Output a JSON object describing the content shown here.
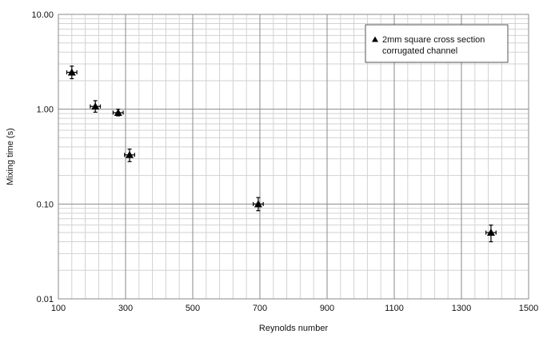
{
  "chart_data": {
    "type": "scatter",
    "title": "",
    "xlabel": "Reynolds number",
    "ylabel": "Mixing time (s)",
    "xlim": [
      100,
      1500
    ],
    "ylim": [
      0.01,
      10
    ],
    "y_scale": "log",
    "grid": true,
    "legend_position": "top-right",
    "x_ticks": [
      100,
      300,
      500,
      700,
      900,
      1100,
      1300,
      1500
    ],
    "x_tick_labels": [
      "100",
      "300",
      "500",
      "700",
      "900",
      "1100",
      "1300",
      "1500"
    ],
    "y_ticks": [
      0.01,
      0.1,
      1,
      10
    ],
    "y_tick_labels": [
      "0.01",
      "0.10",
      "1.00",
      "10.00"
    ],
    "series": [
      {
        "name": "2mm square cross section corrugated channel",
        "legend_lines": [
          "2mm square cross section",
          "corrugated channel"
        ],
        "marker": "triangle",
        "color": "#000000",
        "points": [
          {
            "x": 140,
            "y": 2.45,
            "x_err": 15,
            "y_err_low": 2.1,
            "y_err_high": 2.85
          },
          {
            "x": 210,
            "y": 1.07,
            "x_err": 15,
            "y_err_low": 0.93,
            "y_err_high": 1.23
          },
          {
            "x": 278,
            "y": 0.92,
            "x_err": 15,
            "y_err_low": 0.85,
            "y_err_high": 1.0
          },
          {
            "x": 312,
            "y": 0.33,
            "x_err": 15,
            "y_err_low": 0.28,
            "y_err_high": 0.38
          },
          {
            "x": 695,
            "y": 0.1,
            "x_err": 15,
            "y_err_low": 0.085,
            "y_err_high": 0.117
          },
          {
            "x": 1388,
            "y": 0.05,
            "x_err": 15,
            "y_err_low": 0.04,
            "y_err_high": 0.06
          }
        ]
      }
    ]
  }
}
